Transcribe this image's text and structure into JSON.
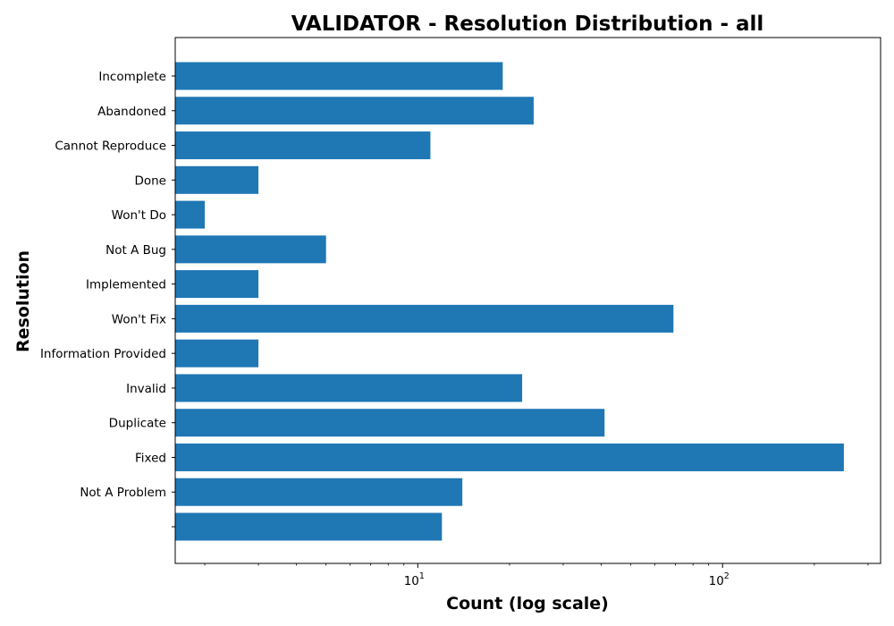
{
  "chart_data": {
    "type": "bar",
    "orientation": "horizontal",
    "title": "VALIDATOR - Resolution Distribution - all",
    "xlabel": "Count (log scale)",
    "ylabel": "Resolution",
    "x_scale": "log",
    "xlim": [
      1.6,
      330
    ],
    "grid": false,
    "bar_color": "#1f77b4",
    "x_ticks": [
      {
        "value": 10,
        "base": "10",
        "exp": "1"
      },
      {
        "value": 100,
        "base": "10",
        "exp": "2"
      }
    ],
    "categories": [
      "",
      "Not A Problem",
      "Fixed",
      "Duplicate",
      "Invalid",
      "Information Provided",
      "Won't Fix",
      "Implemented",
      "Not A Bug",
      "Won't Do",
      "Done",
      "Cannot Reproduce",
      "Abandoned",
      "Incomplete"
    ],
    "values": [
      12,
      14,
      250,
      41,
      22,
      3,
      69,
      3,
      5,
      2,
      3,
      11,
      24,
      19
    ]
  }
}
